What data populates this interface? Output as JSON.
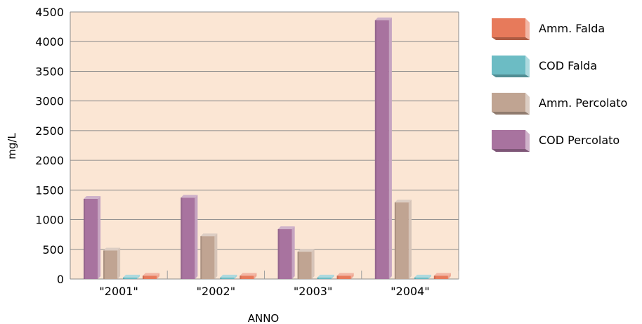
{
  "chart_data": {
    "type": "bar",
    "categories": [
      "\"2001\"",
      "\"2002\"",
      "\"2003\"",
      "\"2004\""
    ],
    "series": [
      {
        "name": "COD Percolato",
        "values": [
          1350,
          1370,
          840,
          4360
        ],
        "color": "#a8739f"
      },
      {
        "name": "Amm. Percolato",
        "values": [
          480,
          720,
          460,
          1290
        ],
        "color": "#c0a492"
      },
      {
        "name": "COD Falda",
        "values": [
          25,
          25,
          25,
          25
        ],
        "color": "#6cbcc4"
      },
      {
        "name": "Amm. Falda",
        "values": [
          55,
          55,
          55,
          55
        ],
        "color": "#e77a5b"
      }
    ],
    "legend_order": [
      "Amm. Falda",
      "COD Falda",
      "Amm. Percolato",
      "COD Percolato"
    ],
    "xlabel": "ANNO",
    "ylabel": "mg/L",
    "ylim": [
      0,
      4500
    ],
    "yticks": [
      0,
      500,
      1000,
      1500,
      2000,
      2500,
      3000,
      3500,
      4000,
      4500
    ],
    "grid": true,
    "legend_position": "right",
    "plot_background": "#fbe6d4",
    "grid_color": "#8c8c8c"
  }
}
